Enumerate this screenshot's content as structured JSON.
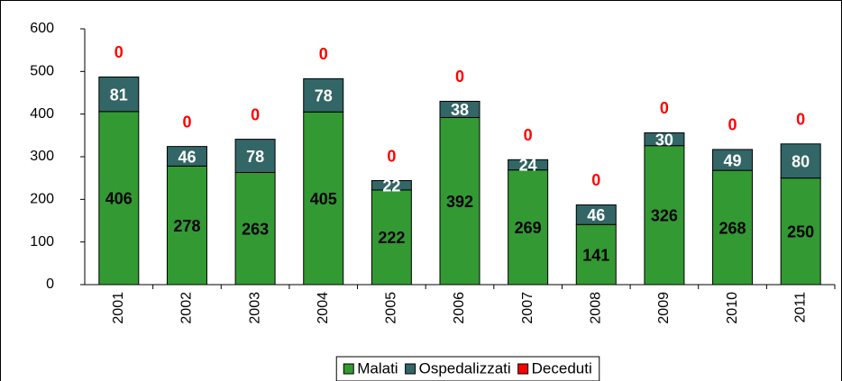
{
  "chart_data": {
    "type": "stacked_bar",
    "categories": [
      "2001",
      "2002",
      "2003",
      "2004",
      "2005",
      "2006",
      "2007",
      "2008",
      "2009",
      "2010",
      "2011"
    ],
    "series": [
      {
        "name": "Malati",
        "color": "#339933",
        "values": [
          406,
          278,
          263,
          405,
          222,
          392,
          269,
          141,
          326,
          268,
          250
        ]
      },
      {
        "name": "Ospedalizzati",
        "color": "#336666",
        "values": [
          81,
          46,
          78,
          78,
          22,
          38,
          24,
          46,
          30,
          49,
          80
        ]
      },
      {
        "name": "Deceduti",
        "color": "#ff0000",
        "values": [
          0,
          0,
          0,
          0,
          0,
          0,
          0,
          0,
          0,
          0,
          0
        ]
      }
    ],
    "ylim": [
      0,
      600
    ],
    "yticks": [
      0,
      100,
      200,
      300,
      400,
      500,
      600
    ],
    "grid": false,
    "legend": "bottom"
  }
}
